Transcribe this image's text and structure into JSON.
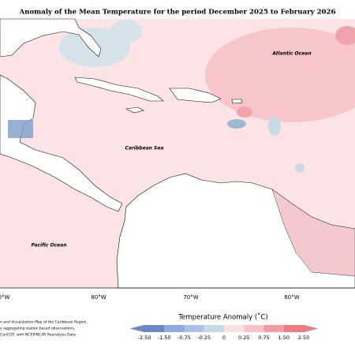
{
  "title": "Anomaly of the Mean Temperature for the period December 2025 to February 2026",
  "ocean_labels": [
    "Atlantic Ocean",
    "Caribbean Sea",
    "Pacific Ocean"
  ],
  "longitude_labels": [
    "0°W",
    "80°W",
    "70°W",
    "60°W"
  ],
  "legend": {
    "title": "Temperature Anomaly (˚C)",
    "ticks": [
      "-2.50",
      "-1.50",
      "-0.75",
      "-0.25",
      "0",
      "0.25",
      "0.75",
      "1.50",
      "2.50"
    ]
  },
  "footnote": [
    "n and Visualization Map of the Caribbean Region,",
    "y aggregating station based observations,",
    "CariCOF, with NCEP/NCAR Reanalysis Data."
  ]
}
